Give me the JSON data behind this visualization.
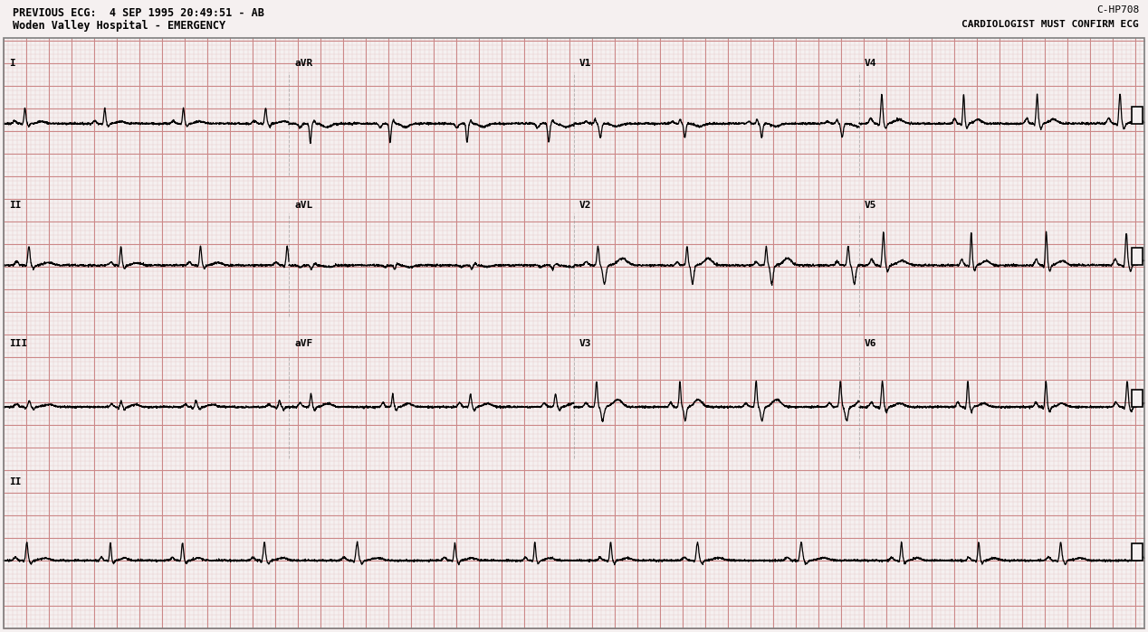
{
  "title_line1": "PREVIOUS ECG:  4 SEP 1995 20:49:51 - AB",
  "title_line2": "Woden Valley Hospital - EMERGENCY",
  "title_right": "CARDIOLOGIST MUST CONFIRM ECG",
  "code_right": "C-HP708",
  "bg_color": "#f5f0f0",
  "grid_major_color": "#cc8888",
  "grid_minor_color": "#e8cccc",
  "ecg_color": "#000000",
  "text_color": "#000000",
  "fig_width": 12.68,
  "fig_height": 6.99,
  "dpi": 100
}
